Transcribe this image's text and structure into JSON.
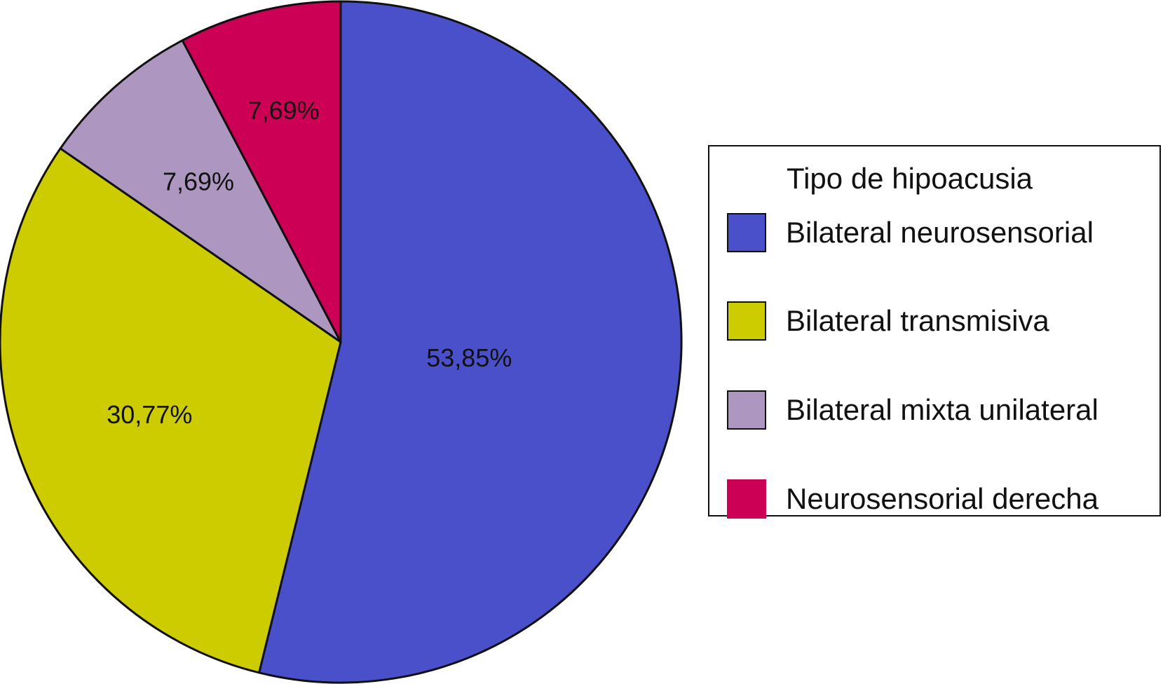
{
  "chart_data": {
    "type": "pie",
    "legend_title": "Tipo de hipoacusia",
    "legend_position": "right",
    "categories": [
      "Bilateral neurosensorial",
      "Bilateral transmisiva",
      "Bilateral mixta unilateral",
      "Neurosensorial derecha"
    ],
    "values": [
      53.85,
      30.77,
      7.69,
      7.69
    ],
    "data_labels": [
      "53,85%",
      "30,77%",
      "7,69%",
      "7,69%"
    ],
    "colors": [
      "#4a50c9",
      "#cccc00",
      "#ad96c0",
      "#cc0055"
    ],
    "start": "top",
    "direction": "clockwise"
  }
}
